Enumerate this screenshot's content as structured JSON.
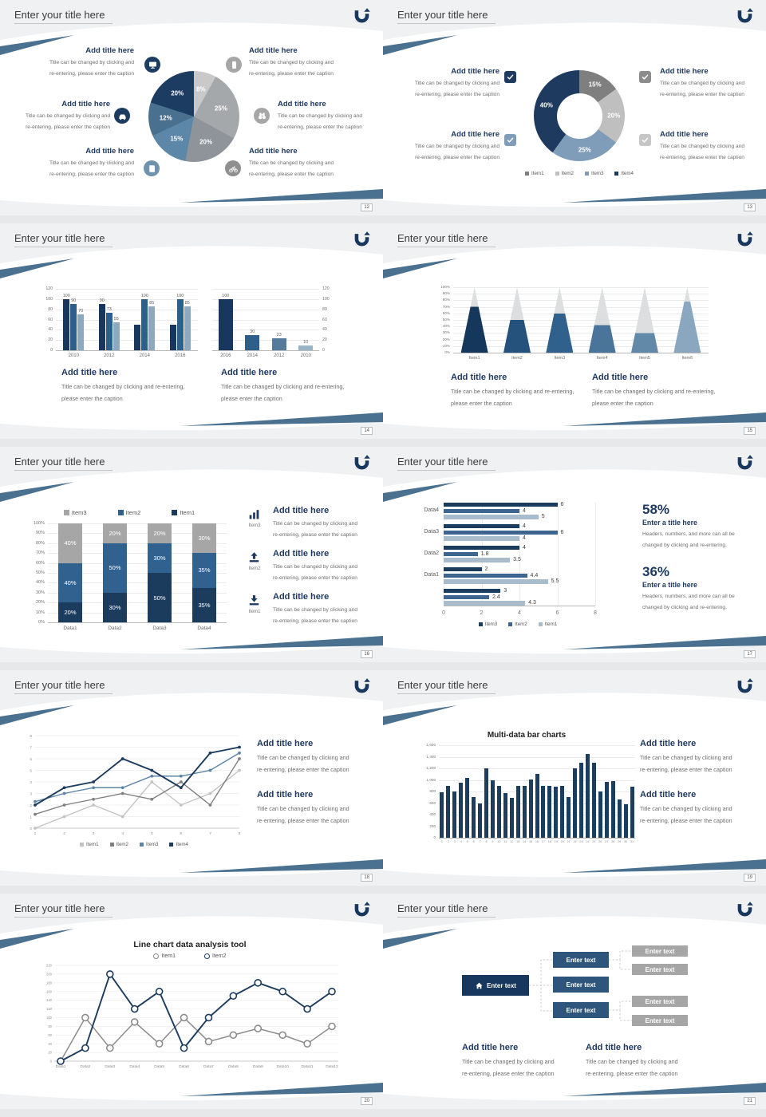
{
  "colors": {
    "navy": "#17375e",
    "blue": "#2e5f8a",
    "steel": "#4e7093",
    "lightsteel": "#8ca9c0",
    "gray": "#a6a6a6",
    "swoosh": "#4a7290"
  },
  "common": {
    "slide_title": "Enter your title here",
    "add_title": "Add title here",
    "cap_a1": "Title can be changed by clicking and",
    "cap_a2": "re-entering, please enter the caption",
    "cap_b1": "Title can be changed by clicking and re-entering,",
    "cap_b2": "please enter the caption",
    "stat_title": "Enter a title here",
    "stat_cap1": "Headers, numbers, and more can all be",
    "stat_cap2": "changed by clicking and re-entering.",
    "logo": "u-turn-arrow-logo"
  },
  "slides": [
    {
      "page": "12",
      "icons": [
        {
          "icon": "monitor",
          "color": "#1c3d61"
        },
        {
          "icon": "phone",
          "color": "#a6a6a6"
        },
        {
          "icon": "car",
          "color": "#1c3d61"
        },
        {
          "icon": "binoculars",
          "color": "#a6a6a6"
        },
        {
          "icon": "book",
          "color": "#6f93ad"
        },
        {
          "icon": "bicycle",
          "color": "#8f8f8f"
        }
      ],
      "chart_data": {
        "type": "pie",
        "slices": [
          {
            "label": "8%",
            "value": 8,
            "color": "#c9c9c9"
          },
          {
            "label": "25%",
            "value": 25,
            "color": "#a5a8ab"
          },
          {
            "label": "20%",
            "value": 20,
            "color": "#8e9499"
          },
          {
            "label": "15%",
            "value": 15,
            "color": "#5d87a8"
          },
          {
            "label": "12%",
            "value": 12,
            "color": "#49708f"
          },
          {
            "label": "20%",
            "value": 20,
            "color": "#1c3d61"
          }
        ]
      }
    },
    {
      "page": "13",
      "icons": [
        {
          "icon": "check",
          "color": "#1f3a5f"
        },
        {
          "icon": "check",
          "color": "#8c8c8c"
        },
        {
          "icon": "check",
          "color": "#7f9db9"
        },
        {
          "icon": "check",
          "color": "#c6c6c6"
        }
      ],
      "chart_data": {
        "type": "donut",
        "slices": [
          {
            "label": "15%",
            "value": 15,
            "color": "#7f7f7f"
          },
          {
            "label": "20%",
            "value": 20,
            "color": "#bfbfbf"
          },
          {
            "label": "25%",
            "value": 25,
            "color": "#7f9db9"
          },
          {
            "label": "40%",
            "value": 40,
            "color": "#1f3a5f"
          }
        ],
        "legend": [
          {
            "label": "Item1",
            "color": "#7f7f7f"
          },
          {
            "label": "Item2",
            "color": "#bfbfbf"
          },
          {
            "label": "Item3",
            "color": "#7f9db9"
          },
          {
            "label": "Item4",
            "color": "#1f3a5f"
          }
        ]
      }
    },
    {
      "page": "14",
      "chart_data": [
        {
          "type": "bar-grouped",
          "categories": [
            "2010",
            "2012",
            "2014",
            "2016"
          ],
          "series": [
            {
              "name": "s1",
              "color": "#17375e",
              "values": [
                100,
                90,
                50,
                50
              ]
            },
            {
              "name": "s2",
              "color": "#2e5f8a",
              "values": [
                90,
                73,
                100,
                100
              ]
            },
            {
              "name": "s3",
              "color": "#8ca9c0",
              "values": [
                70,
                55,
                85,
                85
              ]
            }
          ],
          "labels": [
            [
              100,
              90,
              70
            ],
            [
              90,
              73,
              55
            ],
            [
              null,
              100,
              85
            ],
            [
              null,
              100,
              85
            ]
          ],
          "ymax": 120,
          "ystep": 20
        },
        {
          "type": "bar-simple",
          "categories": [
            "2016",
            "2014",
            "2012",
            "2010"
          ],
          "values": [
            100,
            30,
            23,
            10
          ],
          "colors": [
            "#17375e",
            "#2e5f8a",
            "#547a9c",
            "#9ab4c7"
          ],
          "ymax": 120,
          "ystep": 20
        }
      ]
    },
    {
      "page": "15",
      "chart_data": {
        "type": "pyramid",
        "categories": [
          "Item1",
          "Item2",
          "Item3",
          "Item4",
          "Item5",
          "Item6"
        ],
        "values": [
          70,
          50,
          60,
          42,
          30,
          78
        ],
        "colors": [
          "#16375c",
          "#24527c",
          "#2f618c",
          "#4a7499",
          "#6289a8",
          "#8aa7bf"
        ],
        "ymax": 100,
        "ystep": 10
      }
    },
    {
      "page": "16",
      "features": [
        {
          "icon": "bar-chart",
          "label": "Item3"
        },
        {
          "icon": "upload",
          "label": "Item2"
        },
        {
          "icon": "download",
          "label": "Item1"
        }
      ],
      "chart_data": {
        "type": "stacked",
        "categories": [
          "Data1",
          "Data2",
          "Data3",
          "Data4"
        ],
        "series": [
          {
            "name": "Item1",
            "color": "#1c3c5e",
            "values": [
              20,
              30,
              50,
              35
            ]
          },
          {
            "name": "Item2",
            "color": "#31618e",
            "values": [
              40,
              50,
              30,
              35
            ]
          },
          {
            "name": "Item3",
            "color": "#a6a6a6",
            "values": [
              40,
              20,
              20,
              30
            ]
          }
        ],
        "legend": [
          {
            "label": "Item3",
            "color": "#a6a6a6"
          },
          {
            "label": "Item2",
            "color": "#31618e"
          },
          {
            "label": "Item1",
            "color": "#1c3c5e"
          }
        ],
        "ymax": 100,
        "ystep": 10
      }
    },
    {
      "page": "17",
      "stats": [
        {
          "pct": "58%"
        },
        {
          "pct": "36%"
        }
      ],
      "chart_data": {
        "type": "hbar",
        "groups": [
          "Data4",
          "Data3",
          "Data2",
          "Data1",
          ""
        ],
        "values": [
          [
            6,
            4,
            5
          ],
          [
            4,
            6,
            4
          ],
          [
            4,
            1.8,
            3.5
          ],
          [
            2,
            4.4,
            5.5
          ],
          [
            3,
            2.4,
            4.3
          ]
        ],
        "colors": [
          "#1c3c5e",
          "#3c6690",
          "#a8bccb"
        ],
        "xmax": 8,
        "xstep": 2,
        "legend": [
          {
            "label": "Item3",
            "color": "#1c3c5e"
          },
          {
            "label": "Item2",
            "color": "#3c6690"
          },
          {
            "label": "Item1",
            "color": "#a8bccb"
          }
        ]
      }
    },
    {
      "page": "18",
      "chart_data": {
        "type": "line",
        "x": [
          1,
          2,
          3,
          4,
          5,
          6,
          7,
          8
        ],
        "ymax": 8,
        "ystep": 1,
        "series": [
          {
            "name": "Item1",
            "color": "#c3c3c3",
            "values": [
              0,
              1,
              2,
              1,
              4,
              2,
              3,
              5
            ]
          },
          {
            "name": "Item2",
            "color": "#808080",
            "values": [
              1.2,
              2,
              2.5,
              3,
              2.5,
              4,
              2,
              6
            ]
          },
          {
            "name": "Item3",
            "color": "#5b84a8",
            "values": [
              2.3,
              3,
              3.5,
              3.5,
              4.5,
              4.5,
              5,
              6.5
            ]
          },
          {
            "name": "Item4",
            "color": "#1c3c5e",
            "values": [
              2,
              3.5,
              4,
              6,
              5,
              3.5,
              6.5,
              7
            ]
          }
        ]
      }
    },
    {
      "page": "19",
      "chart_data": {
        "type": "bar-multi",
        "title": "Multi-data bar charts",
        "x": [
          1,
          2,
          3,
          4,
          5,
          6,
          7,
          8,
          9,
          10,
          11,
          12,
          13,
          14,
          15,
          16,
          17,
          18,
          19,
          20,
          21,
          22,
          23,
          24,
          25,
          26,
          27,
          28,
          29,
          30,
          31
        ],
        "values": [
          780,
          900,
          800,
          950,
          1030,
          700,
          600,
          1200,
          990,
          890,
          770,
          690,
          890,
          890,
          1010,
          1100,
          900,
          900,
          880,
          900,
          700,
          1200,
          1300,
          1450,
          1300,
          800,
          970,
          980,
          660,
          580,
          880
        ],
        "color": "#1d3d60",
        "ymax": 1600,
        "ystep": 200
      }
    },
    {
      "page": "20",
      "chart_data": {
        "type": "line-markers",
        "title": "Line chart data analysis tool",
        "categories": [
          "Data1",
          "Data2",
          "Data3",
          "Data4",
          "Data5",
          "Data6",
          "Data7",
          "Data8",
          "Data9",
          "Data10",
          "Data11",
          "Data12"
        ],
        "ymax": 220,
        "ystep": 20,
        "series": [
          {
            "name": "Item1",
            "color": "#8c8c8c",
            "values": [
              0,
              100,
              30,
              90,
              40,
              100,
              45,
              60,
              75,
              60,
              40,
              80
            ]
          },
          {
            "name": "Item2",
            "color": "#1c3c5e",
            "values": [
              0,
              30,
              200,
              120,
              160,
              30,
              100,
              150,
              180,
              160,
              120,
              160
            ]
          }
        ]
      }
    },
    {
      "page": "21",
      "chart_data": {
        "type": "diagram",
        "root": {
          "label": "Enter text",
          "color": "#17375e"
        },
        "mid_color": "#2e567c",
        "leaf_color": "#a6a6a6",
        "mids": [
          {
            "label": "Enter text"
          },
          {
            "label": "Enter text"
          },
          {
            "label": "Enter text"
          }
        ],
        "leaves": [
          {
            "label": "Enter text"
          },
          {
            "label": "Enter text"
          },
          {
            "label": "Enter text"
          },
          {
            "label": "Enter text"
          }
        ]
      }
    }
  ]
}
